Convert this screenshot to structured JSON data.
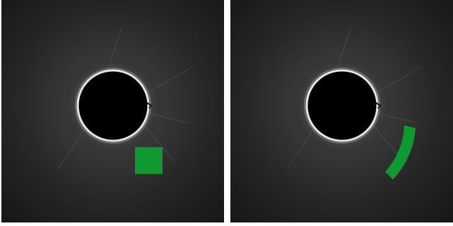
{
  "panels": [
    {
      "id": "left",
      "overlay_shape": "square",
      "overlay_color": "#0f9a31"
    },
    {
      "id": "right",
      "overlay_shape": "arc-band",
      "overlay_color": "#0f9a31"
    }
  ],
  "colors": {
    "background": "#1b1b1b",
    "halo_center": "#4a4a4a",
    "disk": "#000000",
    "ring": "#e8e8e8",
    "divider": "#ffffff"
  }
}
